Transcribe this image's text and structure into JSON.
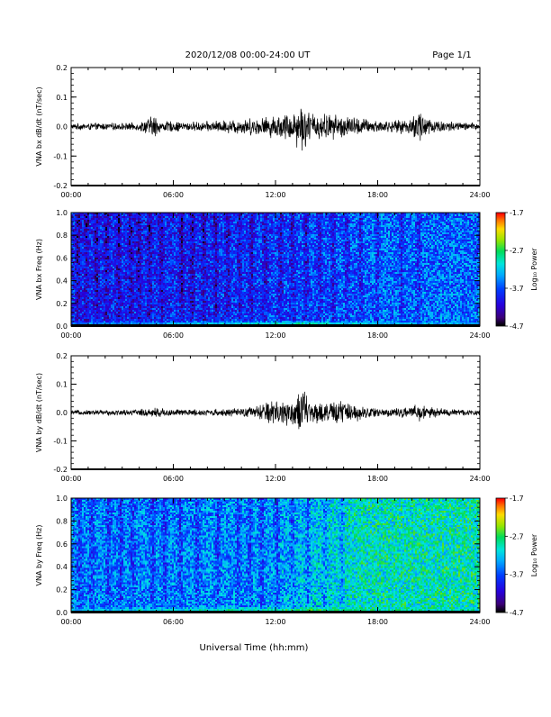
{
  "header": {
    "title": "2020/12/08  00:00-24:00 UT",
    "page": "Page 1/1"
  },
  "footer": {
    "xlabel": "Universal Time (hh:mm)"
  },
  "chart_data": [
    {
      "type": "line",
      "ylabel": "VNA bx dB/dt (nT/sec)",
      "xlim": [
        0,
        24
      ],
      "ylim": [
        -0.2,
        0.2
      ],
      "x_tick_labels": [
        "00:00",
        "06:00",
        "12:00",
        "18:00",
        "24:00"
      ],
      "y_tick_labels": [
        "0.2",
        "0.1",
        "0.0",
        "-0.1",
        "-0.2"
      ],
      "y_ticks": [
        0.2,
        0.1,
        0.0,
        -0.1,
        -0.2
      ],
      "series": [
        {
          "x": [
            0,
            1,
            2,
            3,
            4,
            5,
            5.1,
            6,
            7,
            8,
            9,
            10,
            11,
            12,
            13,
            13.5,
            14,
            15,
            16,
            17,
            18,
            19,
            20,
            20.5,
            21,
            22,
            23,
            24
          ],
          "amplitude": [
            0.01,
            0.012,
            0.012,
            0.012,
            0.014,
            0.045,
            0.02,
            0.018,
            0.016,
            0.018,
            0.022,
            0.028,
            0.03,
            0.04,
            0.05,
            0.09,
            0.05,
            0.045,
            0.04,
            0.03,
            0.022,
            0.02,
            0.03,
            0.07,
            0.03,
            0.02,
            0.015,
            0.012
          ]
        }
      ]
    },
    {
      "type": "heatmap",
      "ylabel": "VNA bx Freq (Hz)",
      "colorbar_label": "Log₁₀ Power",
      "colorbar_ticks": [
        "-1.7",
        "-2.7",
        "-3.7",
        "-4.7"
      ],
      "xlim": [
        0,
        24
      ],
      "ylim": [
        0.0,
        1.0
      ],
      "x_tick_labels": [
        "00:00",
        "06:00",
        "12:00",
        "18:00",
        "24:00"
      ],
      "y_tick_labels": [
        "1.0",
        "0.8",
        "0.6",
        "0.4",
        "0.2",
        "0.0"
      ],
      "y_ticks": [
        1.0,
        0.8,
        0.6,
        0.4,
        0.2,
        0.0
      ],
      "zlim": [
        -4.7,
        -1.7
      ],
      "background_log_power": [
        {
          "t": 0,
          "z": -3.9
        },
        {
          "t": 6,
          "z": -3.9
        },
        {
          "t": 12,
          "z": -3.8
        },
        {
          "t": 18,
          "z": -3.6
        },
        {
          "t": 24,
          "z": -3.6
        }
      ],
      "low_freq_band_log_power": [
        {
          "t": 0,
          "z": -3.3
        },
        {
          "t": 12,
          "z": -2.4
        },
        {
          "t": 14,
          "z": -2.3
        },
        {
          "t": 18,
          "z": -3.0
        },
        {
          "t": 24,
          "z": -3.2
        }
      ],
      "dark_stripes_hours": [
        0.4,
        0.9,
        1.5,
        2.1,
        2.8,
        3.5,
        4.0,
        4.6,
        5.3,
        6.5,
        7.1,
        7.8,
        8.5,
        9.2,
        9.9,
        10.6,
        11.4,
        12.3,
        13.0,
        13.8,
        14.6,
        15.4,
        16.2,
        17.0,
        18.0,
        19.4,
        20.4
      ]
    },
    {
      "type": "line",
      "ylabel": "VNA by dB/dt (nT/sec)",
      "xlim": [
        0,
        24
      ],
      "ylim": [
        -0.2,
        0.2
      ],
      "x_tick_labels": [
        "00:00",
        "06:00",
        "12:00",
        "18:00",
        "24:00"
      ],
      "y_tick_labels": [
        "0.2",
        "0.1",
        "0.0",
        "-0.1",
        "-0.2"
      ],
      "y_ticks": [
        0.2,
        0.1,
        0.0,
        -0.1,
        -0.2
      ],
      "series": [
        {
          "x": [
            0,
            1,
            2,
            3,
            4,
            5,
            6,
            7,
            8,
            9,
            10,
            11,
            11.5,
            12,
            13,
            13.7,
            14,
            15,
            16,
            17,
            18,
            19,
            20,
            20.5,
            21,
            22,
            23,
            24
          ],
          "amplitude": [
            0.008,
            0.009,
            0.01,
            0.01,
            0.012,
            0.02,
            0.012,
            0.012,
            0.012,
            0.013,
            0.015,
            0.025,
            0.04,
            0.05,
            0.045,
            0.09,
            0.04,
            0.035,
            0.045,
            0.025,
            0.018,
            0.015,
            0.02,
            0.035,
            0.02,
            0.014,
            0.012,
            0.01
          ]
        }
      ]
    },
    {
      "type": "heatmap",
      "ylabel": "VNA by Freq (Hz)",
      "colorbar_label": "Log₁₀ Power",
      "colorbar_ticks": [
        "-1.7",
        "-2.7",
        "-3.7",
        "-4.7"
      ],
      "xlim": [
        0,
        24
      ],
      "ylim": [
        0.0,
        1.0
      ],
      "x_tick_labels": [
        "00:00",
        "06:00",
        "12:00",
        "18:00",
        "24:00"
      ],
      "y_tick_labels": [
        "1.0",
        "0.8",
        "0.6",
        "0.4",
        "0.2",
        "0.0"
      ],
      "y_ticks": [
        1.0,
        0.8,
        0.6,
        0.4,
        0.2,
        0.0
      ],
      "zlim": [
        -4.7,
        -1.7
      ],
      "background_log_power": [
        {
          "t": 0,
          "z": -3.5
        },
        {
          "t": 6,
          "z": -3.5
        },
        {
          "t": 12,
          "z": -3.4
        },
        {
          "t": 17,
          "z": -3.0
        },
        {
          "t": 24,
          "z": -2.95
        }
      ],
      "low_freq_band_log_power": [
        {
          "t": 0,
          "z": -3.1
        },
        {
          "t": 12,
          "z": -2.4
        },
        {
          "t": 14,
          "z": -2.3
        },
        {
          "t": 18,
          "z": -2.9
        },
        {
          "t": 24,
          "z": -3.0
        }
      ],
      "dark_stripes_hours": [
        0.5,
        1.2,
        2.2,
        2.9,
        3.6,
        4.8,
        5.5,
        6.4,
        7.4,
        8.6,
        9.8,
        10.5,
        11.2,
        12.1,
        13.0,
        13.9,
        14.9,
        15.9
      ]
    }
  ]
}
